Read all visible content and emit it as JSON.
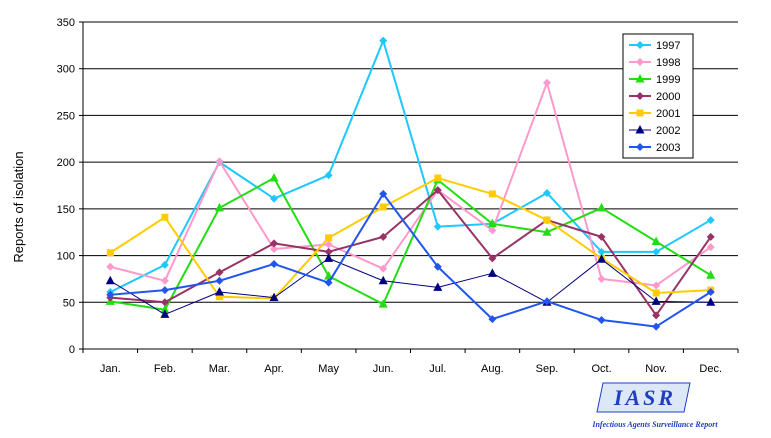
{
  "chart_data": {
    "type": "line",
    "title": "",
    "xlabel": "",
    "ylabel": "Reports of isolation",
    "ylim": [
      0,
      350
    ],
    "yticks": [
      0,
      50,
      100,
      150,
      200,
      250,
      300,
      350
    ],
    "grid": true,
    "legend_position": "top-right",
    "categories": [
      "Jan.",
      "Feb.",
      "Mar.",
      "Apr.",
      "May",
      "Jun.",
      "Jul.",
      "Aug.",
      "Sep.",
      "Oct.",
      "Nov.",
      "Dec."
    ],
    "series": [
      {
        "name": "1997",
        "color": "#1ec8ff",
        "marker": "diamond",
        "values": [
          61,
          90,
          200,
          161,
          186,
          330,
          131,
          134,
          167,
          104,
          104,
          138
        ]
      },
      {
        "name": "1998",
        "color": "#ff99cc",
        "marker": "diamond",
        "values": [
          88,
          73,
          201,
          107,
          112,
          86,
          170,
          127,
          285,
          75,
          68,
          109
        ]
      },
      {
        "name": "1999",
        "color": "#22dd11",
        "marker": "triangle",
        "values": [
          51,
          42,
          151,
          183,
          78,
          48,
          181,
          134,
          125,
          151,
          115,
          79
        ]
      },
      {
        "name": "2000",
        "color": "#993366",
        "marker": "diamond",
        "values": [
          55,
          50,
          82,
          113,
          104,
          120,
          170,
          97,
          138,
          120,
          36,
          120
        ]
      },
      {
        "name": "2001",
        "color": "#ffcc00",
        "marker": "square",
        "values": [
          103,
          141,
          56,
          54,
          119,
          152,
          183,
          166,
          138,
          97,
          60,
          63
        ]
      },
      {
        "name": "2002",
        "color": "#000080",
        "marker": "triangle",
        "values": [
          73,
          37,
          61,
          55,
          97,
          73,
          66,
          81,
          50,
          96,
          51,
          50
        ]
      },
      {
        "name": "2003",
        "color": "#2255ee",
        "marker": "diamond",
        "values": [
          58,
          63,
          73,
          91,
          71,
          166,
          88,
          32,
          51,
          31,
          24,
          61
        ]
      }
    ]
  },
  "logo": {
    "text": "IASR",
    "subtitle": "Infectious Agents Surveillance Report"
  }
}
